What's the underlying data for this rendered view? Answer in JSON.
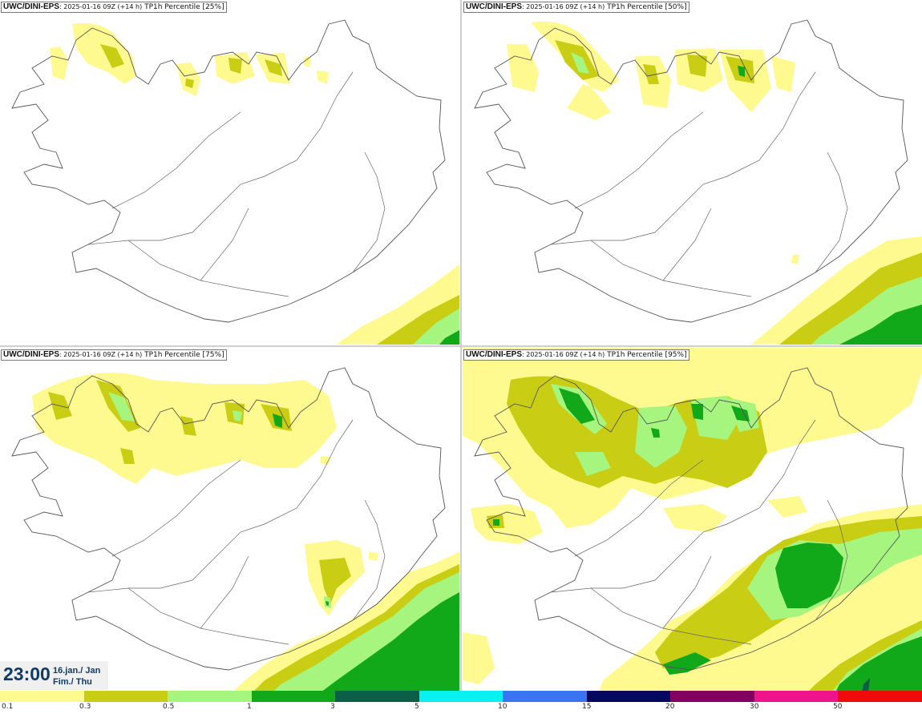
{
  "panels": [
    {
      "model": "UWC/DINI-EPS",
      "run": ": 2025-01-16 09Z (+14 h)",
      "product": " TP1h Percentile [25%]"
    },
    {
      "model": "UWC/DINI-EPS",
      "run": ": 2025-01-16 09Z (+14 h)",
      "product": " TP1h Percentile [50%]"
    },
    {
      "model": "UWC/DINI-EPS",
      "run": ": 2025-01-16 09Z (+14 h)",
      "product": " TP1h Percentile [75%]"
    },
    {
      "model": "UWC/DINI-EPS",
      "run": ": 2025-01-16 09Z (+14 h)",
      "product": " TP1h Percentile [95%]"
    }
  ],
  "valid_time": {
    "time": "23:00",
    "date_line1": "16.jan./ Jan",
    "date_line2": "Fim./ Thu"
  },
  "legend": {
    "colors": [
      "#fffa90",
      "#c9cd14",
      "#a6f57e",
      "#11a81a",
      "#0c5e46",
      "#08f0f0",
      "#3a74f0",
      "#06075e",
      "#820060",
      "#f0148c",
      "#f00a0a"
    ],
    "ticks": [
      "0.1",
      "0.3",
      "0.5",
      "1",
      "3",
      "5",
      "10",
      "15",
      "20",
      "30",
      "50"
    ]
  }
}
